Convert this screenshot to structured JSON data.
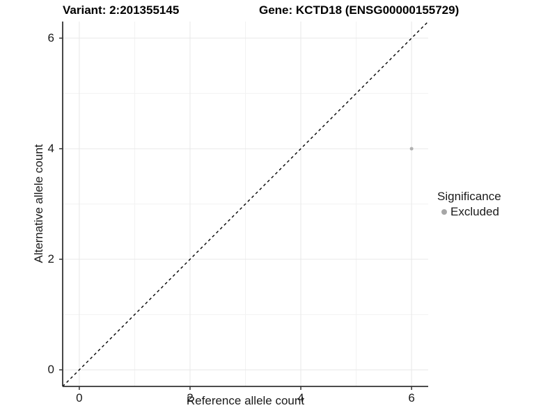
{
  "header": {
    "variant_title": "Variant: 2:201355145",
    "gene_title": "Gene: KCTD18 (ENSG00000155729)"
  },
  "chart_data": {
    "type": "scatter",
    "xlabel": "Reference allele count",
    "ylabel": "Alternative allele count",
    "xlim": [
      -0.3,
      6.3
    ],
    "ylim": [
      -0.3,
      6.3
    ],
    "x_ticks": [
      0,
      2,
      4,
      6
    ],
    "y_ticks": [
      0,
      2,
      4,
      6
    ],
    "x_minor_ticks": [
      1,
      3,
      5
    ],
    "y_minor_ticks": [
      1,
      3,
      5
    ],
    "grid": true,
    "reference_line": {
      "kind": "identity",
      "style": "dashed",
      "color": "#000000"
    },
    "series": [
      {
        "name": "Excluded",
        "color": "#b0b0b0",
        "point_radius": 2.5,
        "points": [
          {
            "x": 6,
            "y": 4
          }
        ]
      }
    ],
    "legend": {
      "title": "Significance",
      "position": "right",
      "items": [
        {
          "label": "Excluded",
          "color": "#a6a6a6"
        }
      ]
    }
  },
  "colors": {
    "background": "#ffffff",
    "grid_major": "#e8e8e8",
    "grid_minor": "#f2f2f2",
    "axis_line": "#333333",
    "tick_mark": "#333333",
    "text": "#1a1a1a"
  }
}
